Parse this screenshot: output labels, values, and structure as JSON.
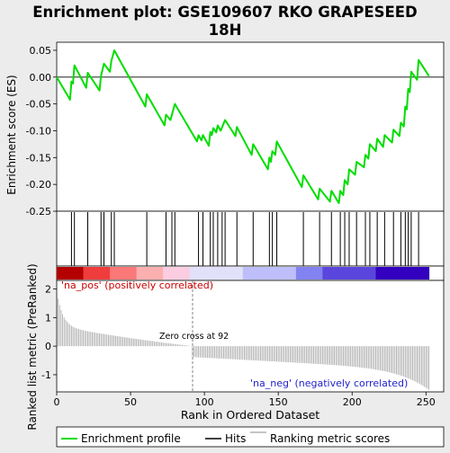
{
  "chart_data": {
    "type": "line",
    "title_line1": "Enrichment plot: GSE109607 RKO GRAPESEED",
    "title_line2": "18H",
    "es_ylabel": "Enrichment score (ES)",
    "rank_ylabel": "Ranked list metric (PreRanked)",
    "xlabel": "Rank in Ordered Dataset",
    "xlim": [
      0,
      262
    ],
    "es_ylim": [
      -0.25,
      0.065
    ],
    "rank_ylim": [
      -1.6,
      2.3
    ],
    "x_ticks": [
      "0",
      "50",
      "100",
      "150",
      "200",
      "250"
    ],
    "es_yticks": [
      "0.05",
      "0.00",
      "-0.05",
      "-0.10",
      "-0.15",
      "-0.20",
      "-0.25"
    ],
    "rank_yticks": [
      "2",
      "1",
      "0",
      "-1"
    ],
    "n_genes": 252,
    "zero_cross_rank": 92,
    "zero_cross_label": "Zero cross at 92",
    "pos_label": "'na_pos' (positively correlated)",
    "neg_label": "'na_neg' (negatively correlated)",
    "hits": [
      10,
      12,
      21,
      30,
      32,
      37,
      39,
      61,
      74,
      78,
      80,
      96,
      99,
      104,
      106,
      109,
      112,
      114,
      122,
      133,
      144,
      146,
      149,
      167,
      178,
      186,
      192,
      195,
      198,
      203,
      209,
      212,
      217,
      222,
      228,
      233,
      236,
      238,
      240,
      245
    ],
    "es_points": [
      [
        0,
        0.0
      ],
      [
        9,
        -0.042
      ],
      [
        10,
        -0.008
      ],
      [
        11,
        -0.012
      ],
      [
        12,
        0.022
      ],
      [
        20,
        -0.02
      ],
      [
        21,
        0.008
      ],
      [
        29,
        -0.025
      ],
      [
        30,
        0.002
      ],
      [
        32,
        0.025
      ],
      [
        36,
        0.01
      ],
      [
        37,
        0.03
      ],
      [
        39,
        0.05
      ],
      [
        60,
        -0.055
      ],
      [
        61,
        -0.032
      ],
      [
        73,
        -0.09
      ],
      [
        74,
        -0.07
      ],
      [
        77,
        -0.08
      ],
      [
        80,
        -0.05
      ],
      [
        95,
        -0.12
      ],
      [
        96,
        -0.108
      ],
      [
        98,
        -0.118
      ],
      [
        99,
        -0.108
      ],
      [
        103,
        -0.128
      ],
      [
        104,
        -0.102
      ],
      [
        105,
        -0.108
      ],
      [
        106,
        -0.095
      ],
      [
        108,
        -0.103
      ],
      [
        109,
        -0.09
      ],
      [
        111,
        -0.1
      ],
      [
        114,
        -0.08
      ],
      [
        121,
        -0.11
      ],
      [
        122,
        -0.093
      ],
      [
        132,
        -0.145
      ],
      [
        133,
        -0.125
      ],
      [
        143,
        -0.172
      ],
      [
        144,
        -0.15
      ],
      [
        145,
        -0.158
      ],
      [
        146,
        -0.138
      ],
      [
        148,
        -0.145
      ],
      [
        149,
        -0.12
      ],
      [
        166,
        -0.205
      ],
      [
        167,
        -0.183
      ],
      [
        177,
        -0.228
      ],
      [
        178,
        -0.208
      ],
      [
        185,
        -0.232
      ],
      [
        186,
        -0.212
      ],
      [
        191,
        -0.235
      ],
      [
        192,
        -0.212
      ],
      [
        194,
        -0.22
      ],
      [
        195,
        -0.192
      ],
      [
        197,
        -0.2
      ],
      [
        198,
        -0.172
      ],
      [
        202,
        -0.182
      ],
      [
        203,
        -0.158
      ],
      [
        208,
        -0.168
      ],
      [
        209,
        -0.145
      ],
      [
        211,
        -0.152
      ],
      [
        212,
        -0.125
      ],
      [
        216,
        -0.138
      ],
      [
        217,
        -0.115
      ],
      [
        221,
        -0.13
      ],
      [
        222,
        -0.108
      ],
      [
        227,
        -0.122
      ],
      [
        228,
        -0.098
      ],
      [
        232,
        -0.11
      ],
      [
        233,
        -0.085
      ],
      [
        235,
        -0.092
      ],
      [
        236,
        -0.055
      ],
      [
        237,
        -0.06
      ],
      [
        238,
        -0.022
      ],
      [
        239,
        -0.028
      ],
      [
        240,
        0.01
      ],
      [
        244,
        -0.005
      ],
      [
        245,
        0.032
      ],
      [
        252,
        0.002
      ]
    ],
    "series": [
      {
        "name": "Enrichment profile",
        "color": "#00dd00"
      },
      {
        "name": "Hits",
        "color": "#000000"
      },
      {
        "name": "Ranking metric scores",
        "color": "#b0b0b0"
      }
    ]
  }
}
